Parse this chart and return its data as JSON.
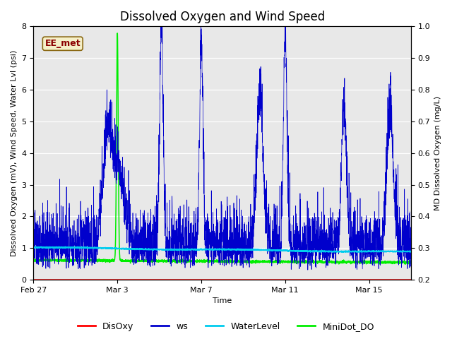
{
  "title": "Dissolved Oxygen and Wind Speed",
  "xlabel": "Time",
  "ylabel_left": "Dissolved Oxygen (mV), Wind Speed, Water Lvl (psi)",
  "ylabel_right": "MD Dissolved Oxygen (mg/L)",
  "ylim_left": [
    0.0,
    8.0
  ],
  "ylim_right": [
    0.2,
    1.0
  ],
  "yticks_left": [
    0.0,
    1.0,
    2.0,
    3.0,
    4.0,
    5.0,
    6.0,
    7.0,
    8.0
  ],
  "yticks_right": [
    0.2,
    0.3,
    0.4,
    0.5,
    0.6,
    0.7,
    0.8,
    0.9,
    1.0
  ],
  "xtick_labels": [
    "Feb 27",
    "Mar 3",
    "Mar 7",
    "Mar 11",
    "Mar 15"
  ],
  "xtick_positions": [
    0,
    4,
    8,
    12,
    16
  ],
  "xlim": [
    0,
    18
  ],
  "annotation_text": "EE_met",
  "annotation_color": "#8b0000",
  "annotation_bg": "#f5f0c8",
  "annotation_edge": "#8b6914",
  "colors": {
    "DisOxy": "#ff0000",
    "ws": "#0000cc",
    "WaterLevel": "#00ccee",
    "MiniDot_DO": "#00ee00"
  },
  "legend_labels": [
    "DisOxy",
    "ws",
    "WaterLevel",
    "MiniDot_DO"
  ],
  "background_color": "#e8e8e8",
  "grid_color": "#ffffff",
  "title_fontsize": 12,
  "label_fontsize": 8,
  "tick_fontsize": 8,
  "n_points": 3000,
  "seed": 42
}
